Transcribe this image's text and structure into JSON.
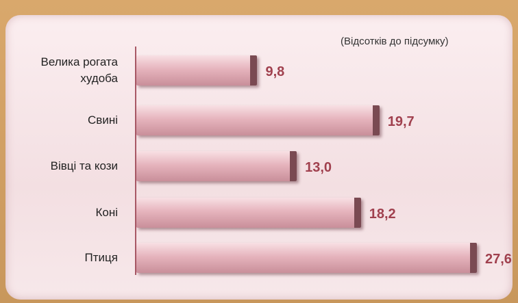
{
  "chart_data": {
    "type": "bar",
    "orientation": "horizontal",
    "subtitle": "(Відсотків до підсумку)",
    "categories": [
      "Велика рогата худоба",
      "Свині",
      "Вівці та кози",
      "Коні",
      "Птиця"
    ],
    "values": [
      9.8,
      19.7,
      13.0,
      18.2,
      27.6
    ],
    "value_labels": [
      "9,8",
      "19,7",
      "13,0",
      "18,2",
      "27,6"
    ],
    "color": "#e6b4bd",
    "label_color": "#a0404e"
  }
}
